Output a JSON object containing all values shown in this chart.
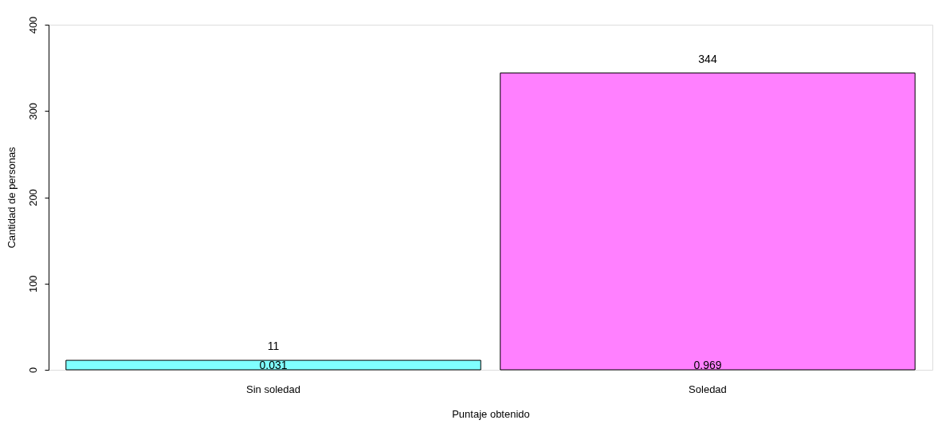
{
  "chart_data": {
    "type": "bar",
    "xlabel": "Puntaje obtenido",
    "ylabel": "Cantidad de personas",
    "categories": [
      "Sin soledad",
      "Soledad"
    ],
    "values": [
      11,
      344
    ],
    "colors": [
      "#80ffff",
      "#ff80ff"
    ],
    "ylim": [
      0,
      400
    ],
    "yticks": [
      0,
      100,
      200,
      300,
      400
    ],
    "data_labels": true,
    "grid": false,
    "annotations": [
      {
        "text": "0.031",
        "x": "Sin soledad",
        "y": 0
      },
      {
        "text": "0.969",
        "x": "Soledad",
        "y": 0
      }
    ]
  }
}
